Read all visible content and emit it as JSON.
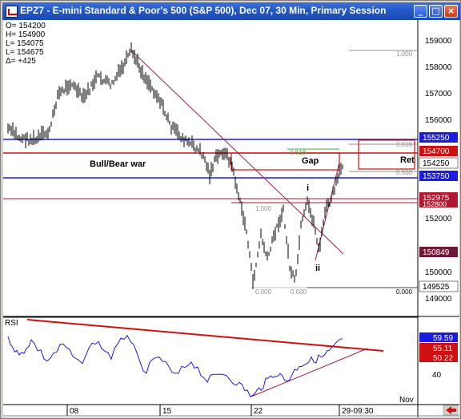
{
  "window": {
    "title": "EPZ7 - E-mini Standard & Poor's 500 (S&P 500), Dec 07, 30 Min, Primary Session",
    "minimize": "_",
    "maximize": "□",
    "close": "×"
  },
  "ohlc_box": {
    "lines": [
      "O=  154200",
      "H=  154900",
      "L=  154075",
      "L=  154675",
      "Δ=       +425"
    ]
  },
  "price_axis": {
    "ticks": [
      "159000",
      "158000",
      "157000",
      "156000",
      "152000",
      "150000",
      "149000"
    ],
    "tags": [
      {
        "value": "155250",
        "color": "#1c1ce0"
      },
      {
        "value": "154700",
        "color": "#d01010"
      },
      {
        "value": "154250",
        "color": "#ffffff"
      },
      {
        "value": "153750",
        "color": "#1c1ce0"
      },
      {
        "value": "152975",
        "color": "#b01830"
      },
      {
        "value": "152800",
        "color": "#b01830"
      },
      {
        "value": "150849",
        "color": "#6e1838"
      },
      {
        "value": "149525",
        "color": "#ffffff"
      }
    ]
  },
  "annotations": {
    "bull_bear": "Bull/Bear war",
    "gap": "Gap",
    "ret": "Ret",
    "wave_i": "i",
    "wave_ii": "ii",
    "fib_labels": [
      "1.000",
      "0.618",
      "0.500",
      "1.000",
      "0.000",
      "0.000",
      "0.000",
      "0.618",
      "0.500"
    ]
  },
  "rsi": {
    "label": "RSI",
    "tags": [
      {
        "value": "59.59",
        "color": "#1c1ce0"
      },
      {
        "value": "55.11",
        "color": "#d01010"
      },
      {
        "value": "50.22",
        "color": "#d01010"
      }
    ],
    "ticks": [
      "40"
    ]
  },
  "time_axis": {
    "labels": [
      "08",
      "15",
      "22",
      "29-09:30"
    ],
    "month": "Nov"
  },
  "colors": {
    "price": "#000000",
    "rsi": "#1c1ce0",
    "support_line": "#1c1ce0",
    "resistance_line": "#d01010",
    "trendline": "#9a2040"
  }
}
